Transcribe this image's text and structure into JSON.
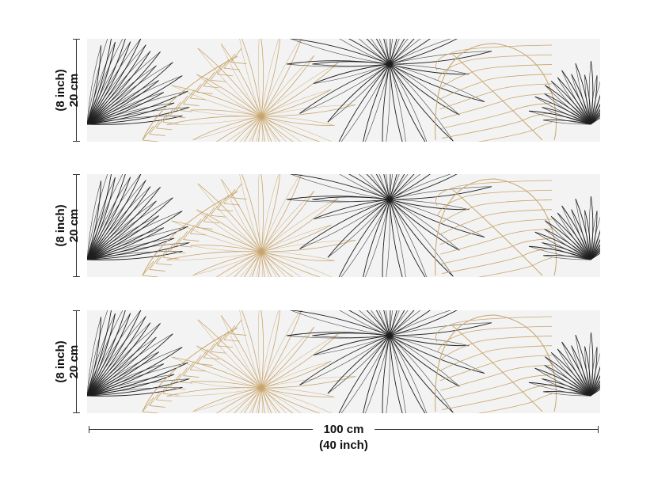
{
  "dimensions": {
    "height_cm": "20 cm",
    "height_inch": "(8 inch)",
    "width_cm": "100 cm",
    "width_inch": "(40 inch)"
  },
  "strips": [
    {
      "pattern": "tropical-leaves-line-art"
    },
    {
      "pattern": "tropical-leaves-line-art"
    },
    {
      "pattern": "tropical-leaves-line-art"
    }
  ],
  "colors": {
    "background": "#ffffff",
    "strip_background": "#f3f3f3",
    "leaf_gold": "#c9a56b",
    "leaf_black": "#1e1e1e"
  }
}
